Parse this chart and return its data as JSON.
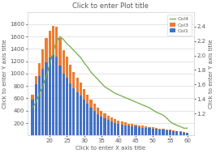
{
  "title": "Click to enter Plot title",
  "xlabel": "Click to enter X axis title",
  "ylabel_left": "Click to enter Y axis title",
  "ylabel_right": "Click to enter Y axis title",
  "x": [
    15,
    16,
    17,
    18,
    19,
    20,
    21,
    22,
    23,
    24,
    25,
    26,
    27,
    28,
    29,
    30,
    31,
    32,
    33,
    34,
    35,
    36,
    37,
    38,
    39,
    40,
    41,
    42,
    43,
    44,
    45,
    46,
    47,
    48,
    49,
    50,
    51,
    52,
    53,
    54,
    55,
    56,
    57,
    58,
    59,
    60
  ],
  "col1": [
    580,
    830,
    960,
    1080,
    1180,
    1260,
    1300,
    1270,
    1130,
    1000,
    930,
    840,
    760,
    700,
    640,
    575,
    510,
    450,
    400,
    350,
    310,
    280,
    255,
    225,
    205,
    190,
    175,
    165,
    155,
    148,
    142,
    138,
    128,
    122,
    118,
    108,
    102,
    98,
    92,
    85,
    80,
    72,
    65,
    58,
    48,
    38
  ],
  "col2": [
    80,
    130,
    210,
    310,
    390,
    430,
    470,
    490,
    440,
    380,
    340,
    300,
    265,
    235,
    210,
    182,
    155,
    135,
    115,
    95,
    85,
    76,
    68,
    62,
    55,
    50,
    46,
    42,
    38,
    35,
    32,
    29,
    27,
    25,
    23,
    21,
    19,
    17,
    15,
    13,
    11,
    10,
    9,
    8,
    7,
    6
  ],
  "col3_line": [
    1.28,
    1.36,
    1.47,
    1.58,
    1.72,
    1.88,
    2.05,
    2.2,
    2.26,
    2.22,
    2.16,
    2.12,
    2.07,
    2.02,
    1.97,
    1.9,
    1.84,
    1.77,
    1.72,
    1.67,
    1.62,
    1.57,
    1.54,
    1.51,
    1.48,
    1.46,
    1.44,
    1.42,
    1.4,
    1.38,
    1.36,
    1.34,
    1.32,
    1.3,
    1.28,
    1.25,
    1.22,
    1.2,
    1.18,
    1.14,
    1.09,
    1.06,
    1.04,
    1.02,
    1.0,
    1.0
  ],
  "bar_color1": "#4472c4",
  "bar_color2": "#ed7d31",
  "line_color": "#70ad47",
  "legend_line_label": "Col4",
  "legend_bar2_label": "Col3",
  "legend_bar1_label": "Col1",
  "bg_color": "#ffffff",
  "grid_color": "#d9d9d9",
  "title_color": "#595959",
  "axis_label_color": "#595959",
  "tick_color": "#595959",
  "ylim_left": [
    0,
    2000
  ],
  "ylim_right": [
    0.9,
    2.6
  ],
  "yticks_left": [
    200,
    400,
    600,
    800,
    1000,
    1200,
    1400,
    1600,
    1800
  ],
  "yticks_right": [
    1.2,
    1.4,
    1.6,
    1.8,
    2.0,
    2.2,
    2.4
  ],
  "xticks": [
    20,
    25,
    30,
    35,
    40,
    45,
    50,
    55,
    60
  ],
  "title_fontsize": 6,
  "axis_label_fontsize": 5,
  "tick_fontsize": 5,
  "legend_fontsize": 4.5
}
